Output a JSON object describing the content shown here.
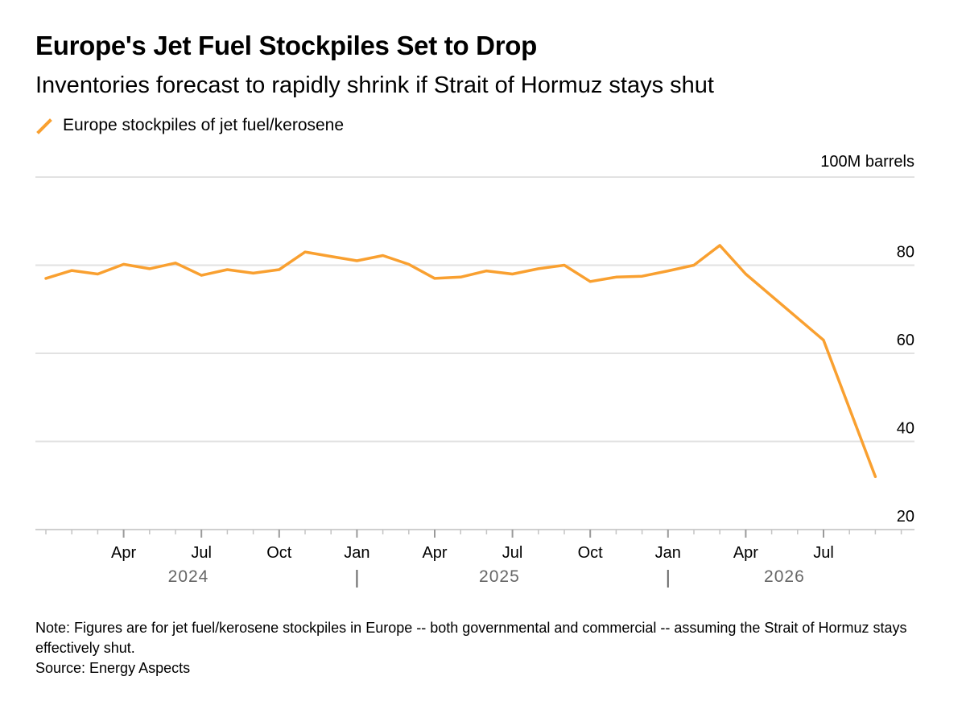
{
  "header": {
    "title": "Europe's Jet Fuel Stockpiles Set to Drop",
    "subtitle": "Inventories forecast to rapidly shrink if Strait of Hormuz stays shut"
  },
  "legend": {
    "label": "Europe stockpiles of jet fuel/kerosene",
    "color": "#f9a030"
  },
  "footer": {
    "note": "Note: Figures are for jet fuel/kerosene stockpiles in Europe -- both governmental and commercial -- assuming the Strait of Hormuz stays effectively shut.",
    "source": "Source: Energy Aspects"
  },
  "chart_data": {
    "type": "line",
    "title": "Europe's Jet Fuel Stockpiles Set to Drop",
    "subtitle": "Inventories forecast to rapidly shrink if Strait of Hormuz stays shut",
    "ylabel": "100M barrels",
    "xlabel": "",
    "ylim": [
      20,
      100
    ],
    "yticks": [
      20,
      40,
      60,
      80
    ],
    "grid": true,
    "legend_position": "top-left",
    "x_month_labels": [
      "Apr",
      "Jul",
      "Oct",
      "Jan",
      "Apr",
      "Jul",
      "Oct",
      "Jan",
      "Apr",
      "Jul"
    ],
    "x_month_label_positions": [
      "2024-04",
      "2024-07",
      "2024-10",
      "2025-01",
      "2025-04",
      "2025-07",
      "2025-10",
      "2026-01",
      "2026-04",
      "2026-07"
    ],
    "x_year_labels": [
      "2024",
      "2025",
      "2026"
    ],
    "x_range": [
      "2024-01",
      "2026-10"
    ],
    "series": [
      {
        "name": "Europe stockpiles of jet fuel/kerosene",
        "color": "#f9a030",
        "x": [
          "2024-01",
          "2024-02",
          "2024-03",
          "2024-04",
          "2024-05",
          "2024-06",
          "2024-07",
          "2024-08",
          "2024-09",
          "2024-10",
          "2024-11",
          "2024-12",
          "2025-01",
          "2025-02",
          "2025-03",
          "2025-04",
          "2025-05",
          "2025-06",
          "2025-07",
          "2025-08",
          "2025-09",
          "2025-10",
          "2025-11",
          "2025-12",
          "2026-01",
          "2026-02",
          "2026-03",
          "2026-04",
          "2026-07",
          "2026-09"
        ],
        "values": [
          77,
          78.8,
          78,
          80.2,
          79.2,
          80.5,
          77.7,
          79,
          78.2,
          79,
          83,
          82,
          81,
          82.2,
          80.2,
          77,
          77.3,
          78.7,
          78,
          79.2,
          80,
          76.3,
          77.3,
          77.5,
          78.7,
          80,
          84.5,
          78,
          63,
          32
        ]
      }
    ]
  }
}
